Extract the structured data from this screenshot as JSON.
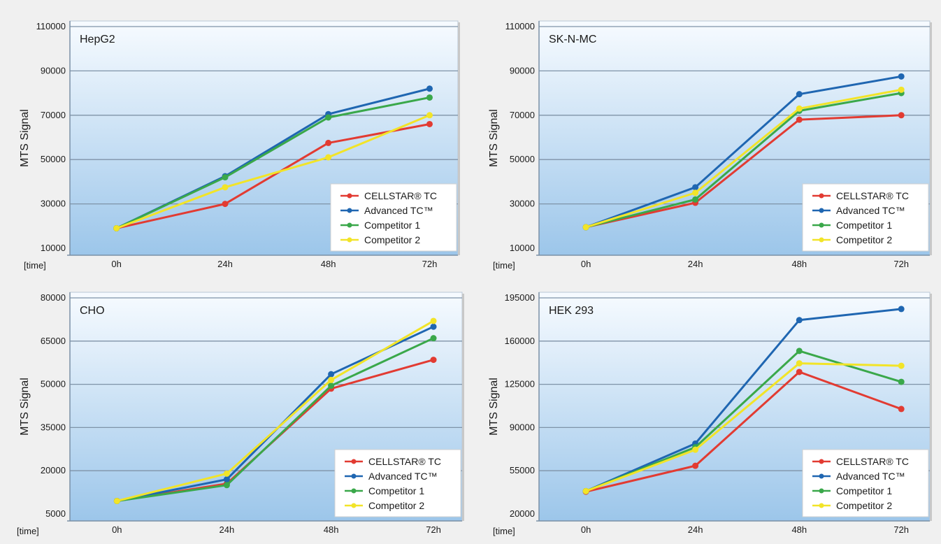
{
  "colors": {
    "background": "#f0f0f0",
    "plot_top": "#f7fbff",
    "plot_bottom": "#9cc6ea",
    "gridline": "#7f93a8",
    "axis": "#7a8fa6"
  },
  "chart_data": [
    {
      "type": "line",
      "title": "HepG2",
      "ylabel": "MTS Signal",
      "xlabel": "[time]",
      "categories": [
        "0h",
        "24h",
        "48h",
        "72h"
      ],
      "ylim": [
        10000,
        110000
      ],
      "yticks": [
        10000,
        30000,
        50000,
        70000,
        90000,
        110000
      ],
      "yticklabels": [
        "10000",
        "30000",
        "50000",
        "70000",
        "90000",
        "110000"
      ],
      "legend": "bottom-right",
      "series": [
        {
          "name": "CELLSTAR® TC",
          "color": "#e23b32",
          "values": [
            19000,
            30000,
            57500,
            66000
          ]
        },
        {
          "name": "Advanced TC™",
          "color": "#1f66b1",
          "values": [
            19000,
            42500,
            70500,
            82000
          ]
        },
        {
          "name": "Competitor 1",
          "color": "#3aa84a",
          "values": [
            19000,
            42000,
            69000,
            78000
          ]
        },
        {
          "name": "Competitor 2",
          "color": "#f2e428",
          "values": [
            19000,
            37500,
            51000,
            70000
          ]
        }
      ]
    },
    {
      "type": "line",
      "title": "SK-N-MC",
      "ylabel": "MTS Signal",
      "xlabel": "[time]",
      "categories": [
        "0h",
        "24h",
        "48h",
        "72h"
      ],
      "ylim": [
        10000,
        110000
      ],
      "yticks": [
        10000,
        30000,
        50000,
        70000,
        90000,
        110000
      ],
      "yticklabels": [
        "10000",
        "30000",
        "50000",
        "70000",
        "90000",
        "110000"
      ],
      "legend": "bottom-right",
      "series": [
        {
          "name": "CELLSTAR® TC",
          "color": "#e23b32",
          "values": [
            19500,
            30500,
            68000,
            70000
          ]
        },
        {
          "name": "Advanced TC™",
          "color": "#1f66b1",
          "values": [
            19500,
            37500,
            79500,
            87500
          ]
        },
        {
          "name": "Competitor 1",
          "color": "#3aa84a",
          "values": [
            19500,
            32000,
            72000,
            80000
          ]
        },
        {
          "name": "Competitor 2",
          "color": "#f2e428",
          "values": [
            19500,
            35000,
            73000,
            81500
          ]
        }
      ]
    },
    {
      "type": "line",
      "title": "CHO",
      "ylabel": "MTS Signal",
      "xlabel": "[time]",
      "categories": [
        "0h",
        "24h",
        "48h",
        "72h"
      ],
      "ylim": [
        5000,
        80000
      ],
      "yticks": [
        5000,
        20000,
        35000,
        50000,
        65000,
        80000
      ],
      "yticklabels": [
        "5000",
        "20000",
        "35000",
        "50000",
        "65000",
        "80000"
      ],
      "legend": "bottom-right",
      "series": [
        {
          "name": "CELLSTAR® TC",
          "color": "#e23b32",
          "values": [
            9500,
            15500,
            48500,
            58500
          ]
        },
        {
          "name": "Advanced TC™",
          "color": "#1f66b1",
          "values": [
            9500,
            17000,
            53500,
            70000
          ]
        },
        {
          "name": "Competitor 1",
          "color": "#3aa84a",
          "values": [
            9500,
            15000,
            49500,
            66000
          ]
        },
        {
          "name": "Competitor 2",
          "color": "#f2e428",
          "values": [
            9500,
            19000,
            51500,
            72000
          ]
        }
      ]
    },
    {
      "type": "line",
      "title": "HEK 293",
      "ylabel": "MTS Signal",
      "xlabel": "[time]",
      "categories": [
        "0h",
        "24h",
        "48h",
        "72h"
      ],
      "ylim": [
        20000,
        195000
      ],
      "yticks": [
        20000,
        55000,
        90000,
        125000,
        160000,
        195000
      ],
      "yticklabels": [
        "20000",
        "55000",
        "90000",
        "125000",
        "160000",
        "195000"
      ],
      "legend": "bottom-right",
      "series": [
        {
          "name": "CELLSTAR® TC",
          "color": "#e23b32",
          "values": [
            38000,
            59000,
            135000,
            105000
          ]
        },
        {
          "name": "Advanced TC™",
          "color": "#1f66b1",
          "values": [
            38500,
            77000,
            177000,
            186000
          ]
        },
        {
          "name": "Competitor 1",
          "color": "#3aa84a",
          "values": [
            38500,
            74000,
            152000,
            127000
          ]
        },
        {
          "name": "Competitor 2",
          "color": "#f2e428",
          "values": [
            38500,
            72000,
            142000,
            140000
          ]
        }
      ]
    }
  ]
}
